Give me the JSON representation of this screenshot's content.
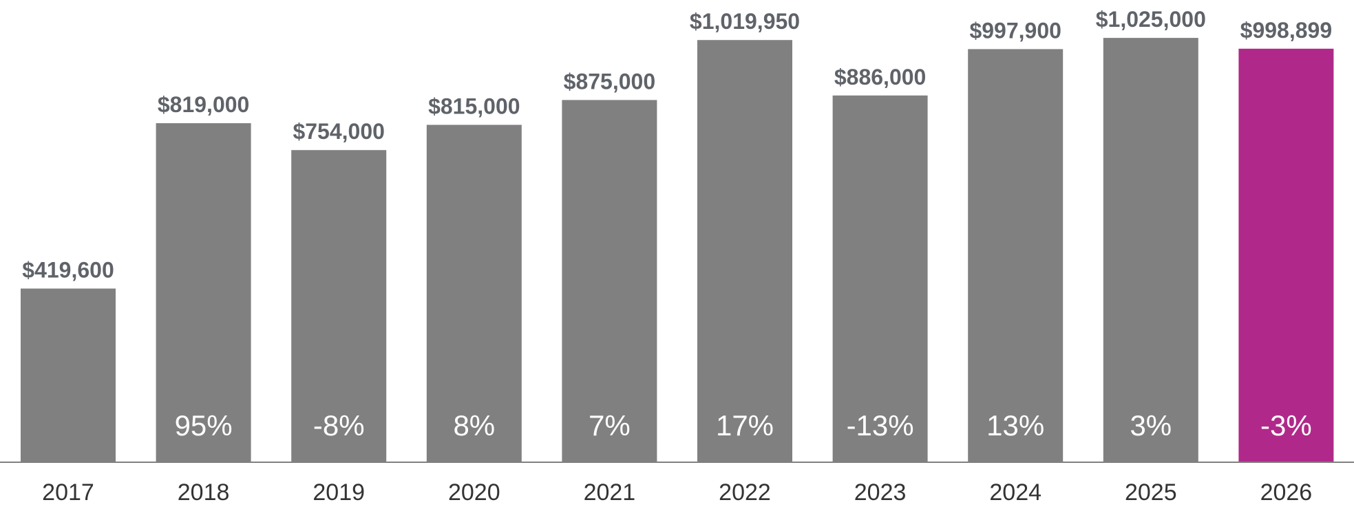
{
  "chart_data": {
    "type": "bar",
    "title": "",
    "xlabel": "",
    "ylabel": "",
    "ylim": [
      0,
      1100000
    ],
    "grid": false,
    "legend": "none",
    "categories": [
      "2017",
      "2018",
      "2019",
      "2020",
      "2021",
      "2022",
      "2023",
      "2024",
      "2025",
      "2026"
    ],
    "values": [
      419600,
      819000,
      754000,
      815000,
      875000,
      1019950,
      886000,
      997900,
      1025000,
      998899
    ],
    "value_labels": [
      "$419,600",
      "$819,000",
      "$754,000",
      "$815,000",
      "$875,000",
      "$1,019,950",
      "$886,000",
      "$997,900",
      "$1,025,000",
      "$998,899"
    ],
    "change_labels": [
      "",
      "95%",
      "-8%",
      "8%",
      "7%",
      "17%",
      "-13%",
      "13%",
      "3%",
      "-3%"
    ],
    "highlight_index": 9,
    "colors": {
      "bar": "#808080",
      "highlight": "#B0298A",
      "value_text": "#5F6369",
      "change_text": "#FFFFFF",
      "year_text": "#333333",
      "axis": "#808080"
    }
  }
}
